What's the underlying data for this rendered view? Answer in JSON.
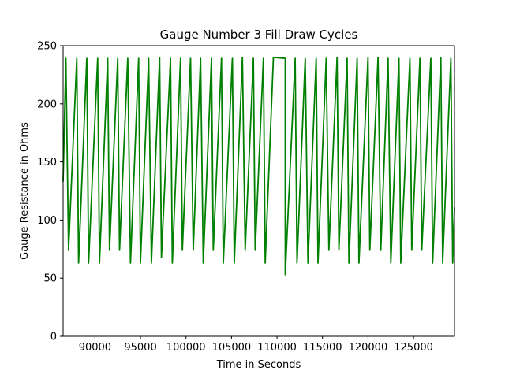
{
  "chart_data": {
    "type": "line",
    "title": "Gauge Number 3 Fill Draw Cycles",
    "xlabel": "Time in Seconds",
    "ylabel": "Gauge Resistance in Ohms",
    "xlim": [
      86500,
      129500
    ],
    "ylim": [
      0,
      250
    ],
    "xticks": [
      90000,
      95000,
      100000,
      105000,
      110000,
      115000,
      120000,
      125000
    ],
    "yticks": [
      0,
      50,
      100,
      150,
      200,
      250
    ],
    "grid": false,
    "legend": "none",
    "series_color": "#008000",
    "series": [
      {
        "peaks": [
          {
            "x": 86800,
            "y": 239
          },
          {
            "x": 88000,
            "y": 239
          },
          {
            "x": 89100,
            "y": 239
          },
          {
            "x": 90300,
            "y": 239
          },
          {
            "x": 91400,
            "y": 239
          },
          {
            "x": 92500,
            "y": 239
          },
          {
            "x": 93600,
            "y": 239
          },
          {
            "x": 94800,
            "y": 239
          },
          {
            "x": 95900,
            "y": 239
          },
          {
            "x": 97100,
            "y": 240
          },
          {
            "x": 98300,
            "y": 239
          },
          {
            "x": 99400,
            "y": 239
          },
          {
            "x": 100500,
            "y": 239
          },
          {
            "x": 101600,
            "y": 239
          },
          {
            "x": 102800,
            "y": 239
          },
          {
            "x": 103900,
            "y": 239
          },
          {
            "x": 105100,
            "y": 239
          },
          {
            "x": 106200,
            "y": 240
          },
          {
            "x": 107400,
            "y": 239
          },
          {
            "x": 108500,
            "y": 239
          },
          {
            "x": 109600,
            "y": 240
          },
          {
            "x": 110900,
            "y": 239
          },
          {
            "x": 112000,
            "y": 239
          },
          {
            "x": 113100,
            "y": 239
          },
          {
            "x": 114300,
            "y": 239
          },
          {
            "x": 115400,
            "y": 239
          },
          {
            "x": 116600,
            "y": 240
          },
          {
            "x": 117700,
            "y": 239
          },
          {
            "x": 118800,
            "y": 239
          },
          {
            "x": 120000,
            "y": 240
          },
          {
            "x": 121100,
            "y": 240
          },
          {
            "x": 122200,
            "y": 239
          },
          {
            "x": 123400,
            "y": 239
          },
          {
            "x": 124600,
            "y": 239
          },
          {
            "x": 125700,
            "y": 239
          },
          {
            "x": 126900,
            "y": 239
          },
          {
            "x": 128000,
            "y": 240
          },
          {
            "x": 129100,
            "y": 239
          }
        ],
        "troughs": [
          {
            "x": 86500,
            "y": 133
          },
          {
            "x": 87100,
            "y": 74
          },
          {
            "x": 88200,
            "y": 63
          },
          {
            "x": 89300,
            "y": 63
          },
          {
            "x": 90500,
            "y": 63
          },
          {
            "x": 91600,
            "y": 74
          },
          {
            "x": 92700,
            "y": 74
          },
          {
            "x": 93900,
            "y": 63
          },
          {
            "x": 95000,
            "y": 63
          },
          {
            "x": 96200,
            "y": 63
          },
          {
            "x": 97300,
            "y": 68
          },
          {
            "x": 98500,
            "y": 63
          },
          {
            "x": 99600,
            "y": 74
          },
          {
            "x": 100800,
            "y": 74
          },
          {
            "x": 101900,
            "y": 63
          },
          {
            "x": 103000,
            "y": 74
          },
          {
            "x": 104100,
            "y": 63
          },
          {
            "x": 105300,
            "y": 63
          },
          {
            "x": 106500,
            "y": 74
          },
          {
            "x": 107600,
            "y": 74
          },
          {
            "x": 108700,
            "y": 63
          },
          {
            "x": 110900,
            "y": 53
          },
          {
            "x": 112200,
            "y": 63
          },
          {
            "x": 113400,
            "y": 63
          },
          {
            "x": 114500,
            "y": 63
          },
          {
            "x": 115700,
            "y": 74
          },
          {
            "x": 116800,
            "y": 74
          },
          {
            "x": 117900,
            "y": 63
          },
          {
            "x": 119000,
            "y": 63
          },
          {
            "x": 120200,
            "y": 74
          },
          {
            "x": 121400,
            "y": 74
          },
          {
            "x": 122500,
            "y": 63
          },
          {
            "x": 123600,
            "y": 63
          },
          {
            "x": 124800,
            "y": 74
          },
          {
            "x": 125900,
            "y": 74
          },
          {
            "x": 127100,
            "y": 63
          },
          {
            "x": 128200,
            "y": 63
          },
          {
            "x": 129300,
            "y": 63
          },
          {
            "x": 129500,
            "y": 111
          }
        ]
      }
    ]
  }
}
